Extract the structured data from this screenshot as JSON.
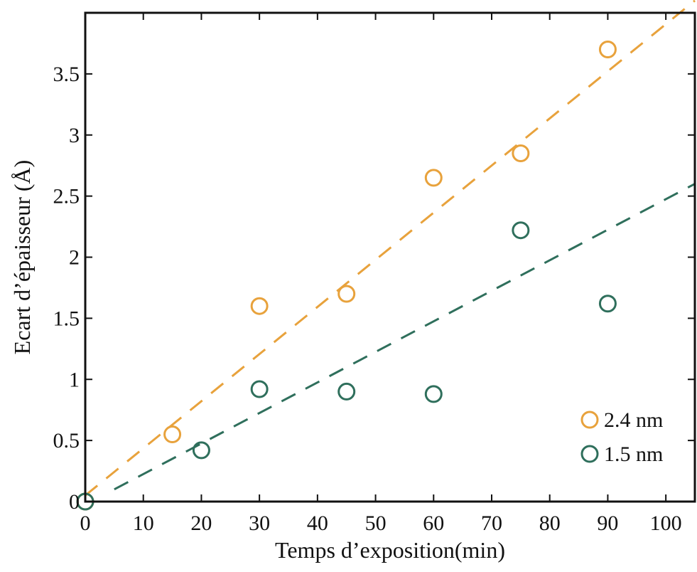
{
  "chart_data": {
    "type": "scatter",
    "title": "",
    "xlabel": "Temps d’exposition(min)",
    "ylabel": "Ecart d’épaisseur (Å)",
    "xlim": [
      0,
      105
    ],
    "ylim": [
      0,
      4
    ],
    "x_ticks": [
      0,
      10,
      20,
      30,
      40,
      50,
      60,
      70,
      80,
      90,
      100
    ],
    "x_tick_labels": [
      "0",
      "10",
      "20",
      "30",
      "40",
      "50",
      "60",
      "70",
      "80",
      "90",
      "100"
    ],
    "y_ticks": [
      0,
      0.5,
      1,
      1.5,
      2,
      2.5,
      3,
      3.5
    ],
    "y_tick_labels": [
      "0",
      "0.5",
      "1",
      "1.5",
      "2",
      "2.5",
      "3",
      "3.5"
    ],
    "grid": false,
    "legend_position": "bottom-right",
    "series": [
      {
        "name": "2.4 nm",
        "color": "#e8a23c",
        "marker": "open-circle",
        "points": [
          [
            0,
            0
          ],
          [
            15,
            0.55
          ],
          [
            30,
            1.6
          ],
          [
            45,
            1.7
          ],
          [
            60,
            2.65
          ],
          [
            75,
            2.85
          ],
          [
            90,
            3.7
          ]
        ],
        "fit_line": {
          "style": "dashed",
          "x": [
            0,
            105
          ],
          "y": [
            0.05,
            4.1
          ]
        }
      },
      {
        "name": "1.5 nm",
        "color": "#2f6f5c",
        "marker": "open-circle",
        "points": [
          [
            0,
            0
          ],
          [
            20,
            0.42
          ],
          [
            30,
            0.92
          ],
          [
            45,
            0.9
          ],
          [
            60,
            0.88
          ],
          [
            75,
            2.22
          ],
          [
            90,
            1.62
          ]
        ],
        "fit_line": {
          "style": "dashed",
          "x": [
            5,
            105
          ],
          "y": [
            0.1,
            2.6
          ]
        }
      }
    ],
    "colors": {
      "axis": "#111111",
      "background": "#ffffff"
    }
  }
}
